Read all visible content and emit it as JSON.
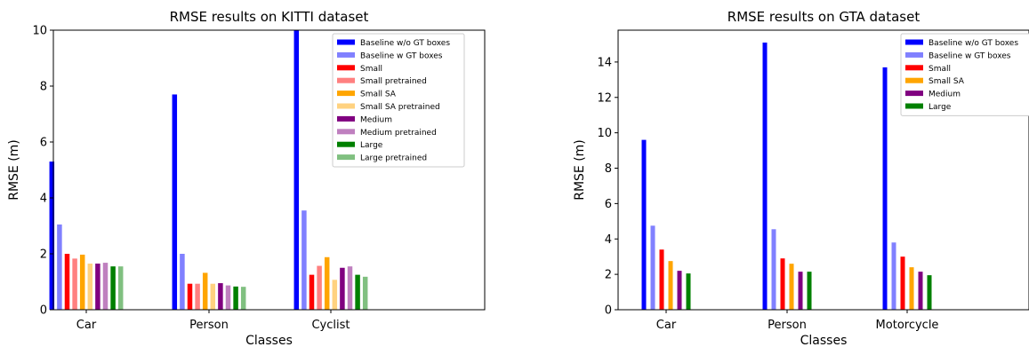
{
  "chart_data": [
    {
      "type": "bar",
      "title": "RMSE results on KITTI dataset",
      "xlabel": "Classes",
      "ylabel": "RMSE (m)",
      "ylim": [
        0,
        10
      ],
      "yticks": [
        "0",
        "2",
        "4",
        "6",
        "8",
        "10"
      ],
      "categories": [
        "Car",
        "Person",
        "Cyclist"
      ],
      "legend_position": "top-right",
      "series": [
        {
          "name": "Baseline w/o GT boxes",
          "color": "#0000ff",
          "values": [
            5.3,
            7.7,
            10.0
          ]
        },
        {
          "name": "Baseline w GT boxes",
          "color": "#8080ff",
          "values": [
            3.05,
            2.0,
            3.55
          ]
        },
        {
          "name": "Small",
          "color": "#ff0000",
          "values": [
            2.0,
            0.93,
            1.25
          ]
        },
        {
          "name": "Small pretrained",
          "color": "#ff8080",
          "values": [
            1.83,
            0.93,
            1.57
          ]
        },
        {
          "name": "Small SA",
          "color": "#ffa500",
          "values": [
            1.97,
            1.32,
            1.88
          ]
        },
        {
          "name": "Small SA pretrained",
          "color": "#ffd280",
          "values": [
            1.65,
            0.93,
            1.07
          ]
        },
        {
          "name": "Medium",
          "color": "#800080",
          "values": [
            1.65,
            0.95,
            1.5
          ]
        },
        {
          "name": "Medium pretrained",
          "color": "#bf80bf",
          "values": [
            1.68,
            0.87,
            1.55
          ]
        },
        {
          "name": "Large",
          "color": "#008000",
          "values": [
            1.55,
            0.83,
            1.25
          ]
        },
        {
          "name": "Large pretrained",
          "color": "#80c080",
          "values": [
            1.55,
            0.82,
            1.18
          ]
        }
      ]
    },
    {
      "type": "bar",
      "title": "RMSE results on GTA dataset",
      "xlabel": "Classes",
      "ylabel": "RMSE (m)",
      "ylim": [
        0,
        15.8
      ],
      "yticks": [
        "0",
        "2",
        "4",
        "6",
        "8",
        "10",
        "12",
        "14"
      ],
      "categories": [
        "Car",
        "Person",
        "Motorcycle"
      ],
      "legend_position": "top-right",
      "series": [
        {
          "name": "Baseline w/o GT boxes",
          "color": "#0000ff",
          "values": [
            9.6,
            15.1,
            13.7
          ]
        },
        {
          "name": "Baseline w GT boxes",
          "color": "#8080ff",
          "values": [
            4.75,
            4.55,
            3.8
          ]
        },
        {
          "name": "Small",
          "color": "#ff0000",
          "values": [
            3.4,
            2.9,
            3.0
          ]
        },
        {
          "name": "Small SA",
          "color": "#ffa500",
          "values": [
            2.75,
            2.6,
            2.4
          ]
        },
        {
          "name": "Medium",
          "color": "#800080",
          "values": [
            2.2,
            2.15,
            2.15
          ]
        },
        {
          "name": "Large",
          "color": "#008000",
          "values": [
            2.05,
            2.15,
            1.95
          ]
        }
      ]
    }
  ]
}
